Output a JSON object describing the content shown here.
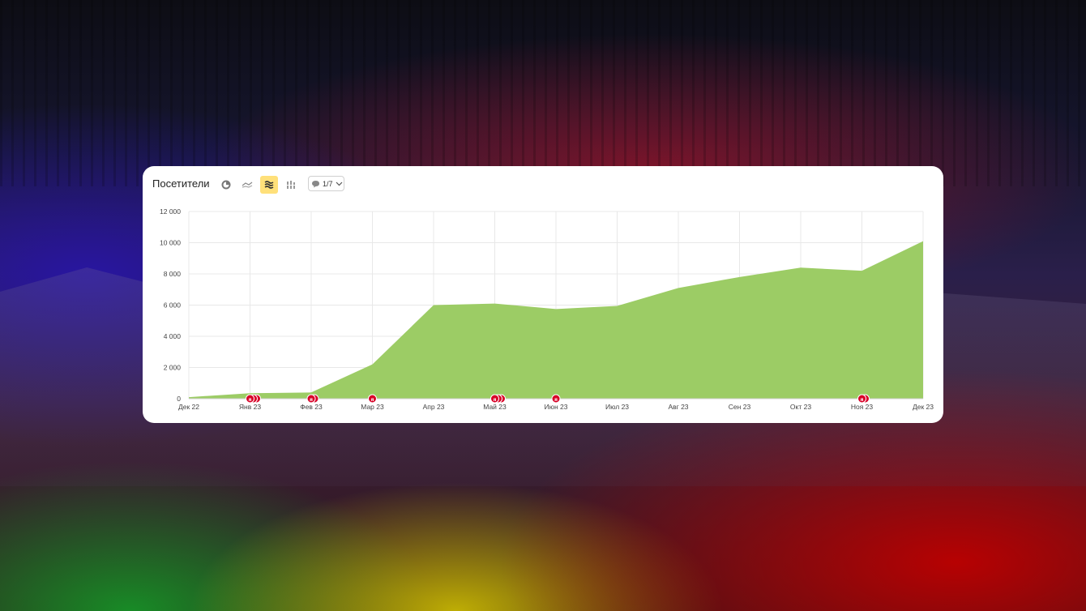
{
  "header": {
    "title": "Посетители",
    "buttons": [
      {
        "icon": "pie-chart-icon",
        "active": false
      },
      {
        "icon": "line-chart-icon",
        "active": false
      },
      {
        "icon": "area-stack-icon",
        "active": true
      },
      {
        "icon": "bar-stack-icon",
        "active": false
      }
    ],
    "annotations_label": "1/7",
    "annotations_icon": "comment-icon",
    "annotations_dropdown_icon": "chevron-down-icon"
  },
  "colors": {
    "area_fill": "#9ccc65",
    "grid": "#e8e8e8",
    "marker": "#d80027",
    "active_button": "#ffe07a"
  },
  "chart_data": {
    "type": "area",
    "title": "",
    "xlabel": "",
    "ylabel": "",
    "categories": [
      "Дек 22",
      "Янв 23",
      "Фев 23",
      "Мар 23",
      "Апр 23",
      "Май 23",
      "Июн 23",
      "Июл 23",
      "Авг 23",
      "Сен 23",
      "Окт 23",
      "Ноя 23",
      "Дек 23"
    ],
    "series": [
      {
        "values": [
          100,
          350,
          400,
          2200,
          6000,
          6100,
          5750,
          5950,
          7100,
          7800,
          8400,
          8200,
          10100
        ]
      }
    ],
    "ylim": [
      0,
      12000
    ],
    "yticks": [
      0,
      2000,
      4000,
      6000,
      8000,
      10000,
      12000
    ],
    "ytick_labels": [
      "0",
      "2 000",
      "4 000",
      "6 000",
      "8 000",
      "10 000",
      "12 000"
    ],
    "grid": true,
    "markers": [
      {
        "x_index": 1,
        "count": 3
      },
      {
        "x_index": 2,
        "count": 2
      },
      {
        "x_index": 3,
        "count": 1
      },
      {
        "x_index": 5,
        "count": 3
      },
      {
        "x_index": 6,
        "count": 1
      },
      {
        "x_index": 11,
        "count": 2
      }
    ],
    "marker_letter": "я"
  }
}
